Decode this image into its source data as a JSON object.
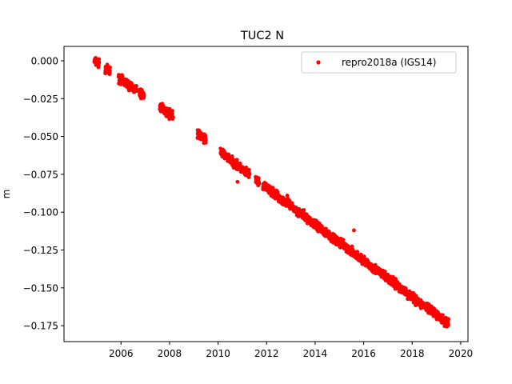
{
  "chart_data": {
    "type": "scatter",
    "title": "TUC2 N",
    "xlabel": "",
    "ylabel": "m",
    "xlim": [
      2003.65,
      2020.3
    ],
    "ylim": [
      -0.1855,
      0.0095
    ],
    "x_ticks": [
      2006,
      2008,
      2010,
      2012,
      2014,
      2016,
      2018,
      2020
    ],
    "y_ticks": [
      0.0,
      -0.025,
      -0.05,
      -0.075,
      -0.1,
      -0.125,
      -0.15,
      -0.175
    ],
    "y_tick_labels": [
      "0.000",
      "−0.025",
      "−0.050",
      "−0.075",
      "−0.100",
      "−0.125",
      "−0.150",
      "−0.175"
    ],
    "grid": false,
    "legend_position": "top-right",
    "series": [
      {
        "name": "repro2018a (IGS14)",
        "color": "#ff0000",
        "marker": "dot",
        "trend": [
          [
            2004.9,
            0.0
          ],
          [
            2006.5,
            -0.018
          ],
          [
            2008.0,
            -0.035
          ],
          [
            2009.5,
            -0.052
          ],
          [
            2011.0,
            -0.072
          ],
          [
            2012.5,
            -0.09
          ],
          [
            2014.0,
            -0.108
          ],
          [
            2015.5,
            -0.126
          ],
          [
            2017.0,
            -0.144
          ],
          [
            2018.5,
            -0.162
          ],
          [
            2019.45,
            -0.173
          ]
        ],
        "segments": [
          {
            "x": [
              2004.9,
              2005.1
            ]
          },
          {
            "x": [
              2005.35,
              2005.55
            ]
          },
          {
            "x": [
              2005.9,
              2006.65
            ]
          },
          {
            "x": [
              2006.75,
              2006.95
            ]
          },
          {
            "x": [
              2007.6,
              2008.15
            ]
          },
          {
            "x": [
              2009.15,
              2009.5
            ]
          },
          {
            "x": [
              2010.1,
              2011.3
            ]
          },
          {
            "x": [
              2011.55,
              2011.7
            ]
          },
          {
            "x": [
              2011.85,
              2019.5
            ]
          }
        ],
        "outliers": [
          {
            "x": 2015.6,
            "y": -0.112
          },
          {
            "x": 2012.85,
            "y": -0.089
          },
          {
            "x": 2010.8,
            "y": -0.08
          }
        ]
      }
    ]
  }
}
